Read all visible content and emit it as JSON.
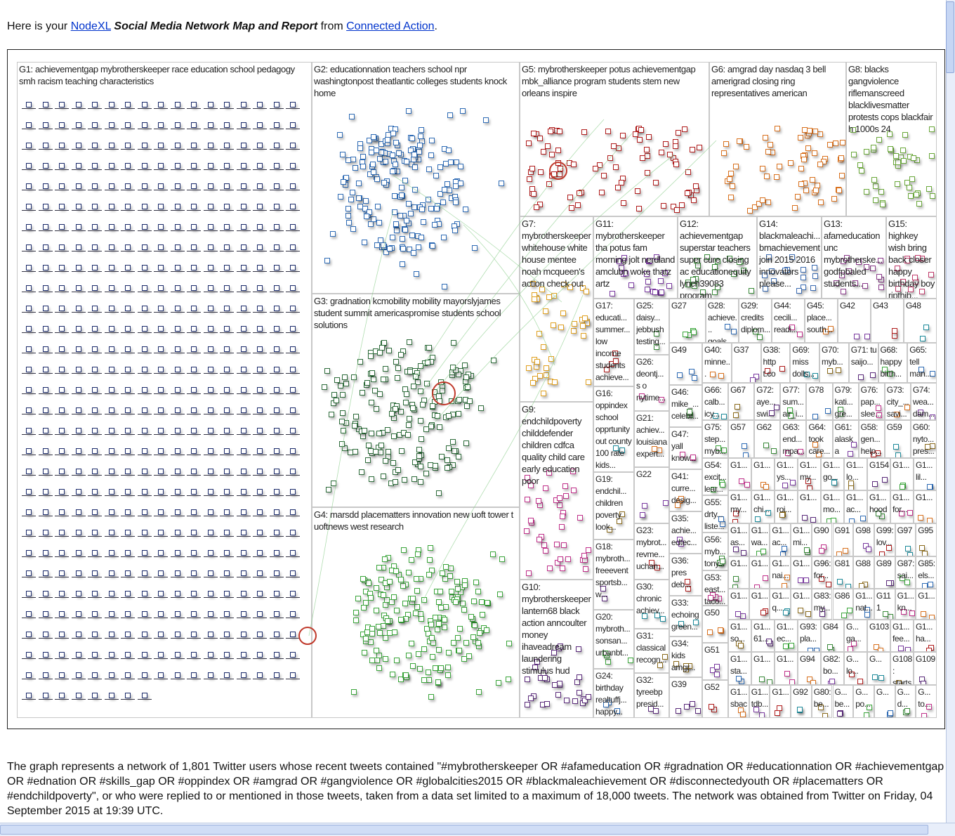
{
  "intro": {
    "lead": "Here is your",
    "link1": "NodeXL",
    "title": "Social Media Network Map and Report",
    "mid": "from",
    "link2": "Connected Action",
    "end": "."
  },
  "map": {
    "groups": [
      {
        "label": "G1: achievementgap mybrotherskeeper race education school pedagogy smh racism teaching characteristics"
      },
      {
        "label": "G2: educationnation teachers school npr washingtonpost theatlantic colleges students knock home"
      },
      {
        "label": "G3: gradnation kcmobility mobility mayorslyjames student summit americaspromise students school solutions"
      },
      {
        "label": "G4: marsdd placematters innovation new uoft tower t uoftnews west research"
      },
      {
        "label": "G5: mybrotherskeeper potus achievementgap mbk_alliance program students stem new orleans inspire"
      },
      {
        "label": "G6: amgrad day nasdaq 3 bell amerigrad closing ring representatives american"
      },
      {
        "label": "G8: blacks gangviolence riflemanscreed blacklivesmatter protests cops blackfair h 1000s 24"
      },
      {
        "label": "G7: mybrotherskeeper whitehouse white house mentee noah mcqueen's action check out"
      },
      {
        "label": "G11: mybrotherskeeper tha potus fam morning jolt nerdland amclubn woke thatz artz"
      },
      {
        "label": "G12: achievementgap superstar teachers super cure closing ac educationequity lynch39083 program"
      },
      {
        "label": "G14: blackmaleachi... bmachievement join 2015 2016 innovators please..."
      },
      {
        "label": "G13: afameducation unc mybrotherske... godfpbaled students..."
      },
      {
        "label": "G15: highkey wish bring back closer happy birthday boy ripthib..."
      },
      {
        "label": "G9: endchildpoverty childdefender children cdfca quality child care early education poor"
      },
      {
        "label": "G10: mybrotherskeeper lantern68 black action anncoulter money ihaveadream laundering stimulus hud"
      },
      {
        "label": "G17: educati... summer... low income students achieve..."
      },
      {
        "label": "G16: oppindex school opprtunity out county 100 rate kids..."
      },
      {
        "label": "G19: endchil... children poverty look..."
      },
      {
        "label": "G18: mybroth... freeevent sportsb... w..."
      },
      {
        "label": "G20: mybroth... sonsan... urbanbt..."
      },
      {
        "label": "G24: birthday realtuffj... happy..."
      },
      {
        "label": "G25: daisy... jebbush testing..."
      },
      {
        "label": "G26: deontj... s o nytime..."
      },
      {
        "label": "G21: achiev... louisiana expert..."
      },
      {
        "label": "G22"
      },
      {
        "label": "G23: mybrot... revme... uchan..."
      },
      {
        "label": "G30: chronic achiev..."
      },
      {
        "label": "G31: classical recogn..."
      },
      {
        "label": "G32: tyreebp presid..."
      },
      {
        "label": "G27"
      },
      {
        "label": "G49"
      },
      {
        "label": "G46: mike_... celebr..."
      },
      {
        "label": "G47: yall know..."
      },
      {
        "label": "G41: curre... desig..."
      },
      {
        "label": "G35: achie... edtec..."
      },
      {
        "label": "G36: pres deb..."
      },
      {
        "label": "G33: echoing green..."
      },
      {
        "label": "G34: kids amgr..."
      },
      {
        "label": "G39"
      },
      {
        "label": "G54: excit... lear..."
      },
      {
        "label": "G55: drty... liste..."
      },
      {
        "label": "G56: myb... tony..."
      },
      {
        "label": "G53: east... taco..."
      },
      {
        "label": "G50"
      },
      {
        "label": "G51"
      },
      {
        "label": "G52"
      }
    ],
    "grid_rows": [
      [
        "G28: achieve... goals...",
        "G29: credits diplom...",
        "G44: cecili... readi...",
        "G45: place... south...",
        "G42",
        "G43",
        "G48"
      ],
      [
        "G40: minne... schls...",
        "G37",
        "G38: http t.co gt...",
        "G69: miss dolls...",
        "G70: myb...",
        "G71: tu saijo...",
        "G68: happy birth...",
        "G65: tell man..."
      ],
      [
        "G66: calb... icy...",
        "G67",
        "G72: aye... swi...",
        "G77: sum... air_i...",
        "G78",
        "G79: kati... gre...",
        "G76: pap... slee...",
        "G73: city_... savi...",
        "G74: wea... dam..."
      ],
      [
        "G75: step... myb...",
        "G57",
        "G62",
        "G63: end... mpa...",
        "G64: took care...",
        "G61: alaska mas...",
        "G58: gen... help...",
        "G59",
        "G60: nyto... pres..."
      ],
      [
        "G1...",
        "G1...",
        "G1... ys...",
        "G1... my...",
        "G1... go...",
        "G1... lo...",
        "G154",
        "G1...",
        "G1... lil..."
      ],
      [
        "G1... my...",
        "G1... chi...",
        "G1... roi...",
        "G1...",
        "G1... mo...",
        "G1... ac...",
        "G1... hood",
        "G1... for...",
        "G1..."
      ],
      [
        "G1... as...",
        "G1... wa...",
        "G1... ac...",
        "G1... mi...",
        "G90",
        "G91",
        "G98",
        "G99: lov...",
        "G97",
        "G95"
      ],
      [
        "G1...",
        "G1...",
        "G1... nai...",
        "G1...",
        "G96: for...",
        "G81",
        "G88",
        "G89",
        "G87: sai...",
        "G85: els..."
      ],
      [
        "G1...",
        "G1...",
        "G1... q...",
        "G1...",
        "G83: my...",
        "G86",
        "G1... nat...",
        "G111",
        "G1... kn...",
        "G1..."
      ],
      [
        "G1... so...",
        "G1... 61...",
        "G1... ec...",
        "G93: pla...",
        "G84",
        "G... ga...",
        "G103",
        "G1... fee...",
        "G1... ha..."
      ],
      [
        "G1... sta...",
        "G1...",
        "G1...",
        "G94",
        "G82: bo...",
        "G... lo...",
        "G...",
        "G108: starts",
        "G109"
      ],
      [
        "G1... sbac",
        "G1... tdb...",
        "G1...",
        "G92",
        "G80: be...",
        "G... be...",
        "G... po...",
        "G...",
        "G... d...",
        "G... to..."
      ]
    ]
  },
  "description": "The graph represents a network of 1,801 Twitter users whose recent tweets contained \"#mybrotherskeeper OR #afameducation OR #gradnation OR #educationnation OR #achievementgap OR #ednation OR #skills_gap OR #oppindex OR #amgrad OR #gangviolence OR #globalcities2015 OR #blackmaleachievement OR #disconnectedyouth OR #placematters OR #endchildpoverty\", or who were replied to or mentioned in those tweets, taken from a data set limited to a maximum of 18,000 tweets. The network was obtained from Twitter on Friday, 04 September 2015 at 19:39 UTC."
}
